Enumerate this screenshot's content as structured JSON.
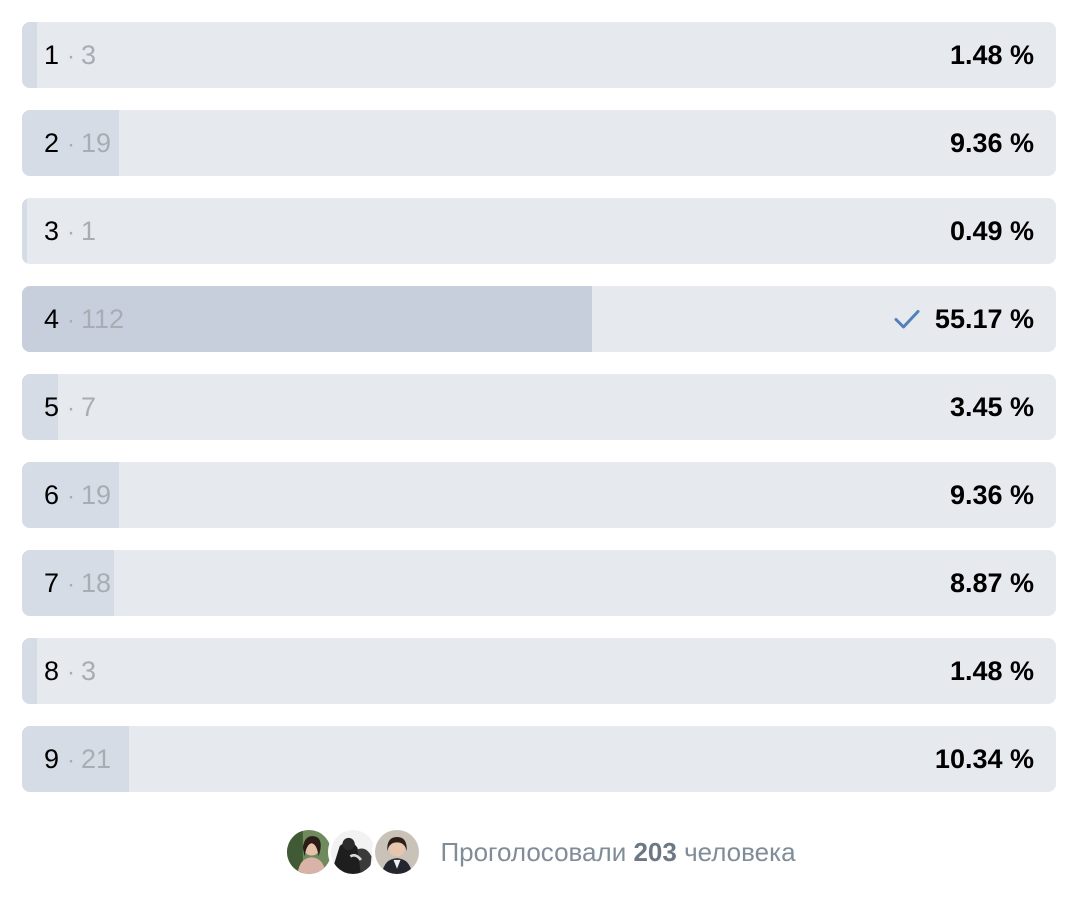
{
  "poll": {
    "options": [
      {
        "label": "1",
        "count": "3",
        "percent": "1.48 %",
        "fraction": 0.0148,
        "voted": false
      },
      {
        "label": "2",
        "count": "19",
        "percent": "9.36 %",
        "fraction": 0.0936,
        "voted": false
      },
      {
        "label": "3",
        "count": "1",
        "percent": "0.49 %",
        "fraction": 0.0049,
        "voted": false
      },
      {
        "label": "4",
        "count": "112",
        "percent": "55.17 %",
        "fraction": 0.5517,
        "voted": true
      },
      {
        "label": "5",
        "count": "7",
        "percent": "3.45 %",
        "fraction": 0.0345,
        "voted": false
      },
      {
        "label": "6",
        "count": "19",
        "percent": "9.36 %",
        "fraction": 0.0936,
        "voted": false
      },
      {
        "label": "7",
        "count": "18",
        "percent": "8.87 %",
        "fraction": 0.0887,
        "voted": false
      },
      {
        "label": "8",
        "count": "3",
        "percent": "1.48 %",
        "fraction": 0.0148,
        "voted": false
      },
      {
        "label": "9",
        "count": "21",
        "percent": "10.34 %",
        "fraction": 0.1034,
        "voted": false
      }
    ],
    "separator": "·",
    "voted_icon": "check-icon"
  },
  "footer": {
    "prefix": "Проголосовали",
    "total": "203",
    "suffix": "человека",
    "avatar_icons": [
      "avatar-user-1",
      "avatar-user-2",
      "avatar-user-3"
    ]
  },
  "colors": {
    "bar_bg": "#e6e9ee",
    "bar_fill": "#d6dce5",
    "bar_fill_voted": "#c8cfdc",
    "check": "#5181b8",
    "muted": "#a8adb4"
  }
}
